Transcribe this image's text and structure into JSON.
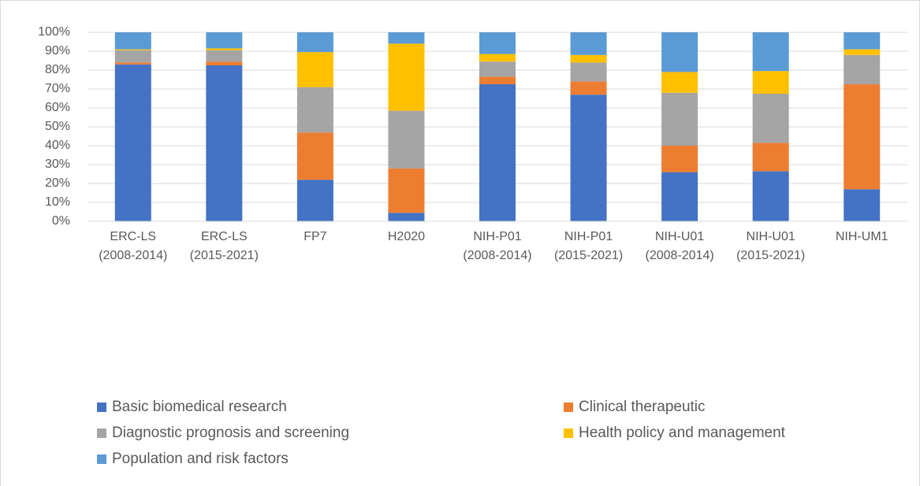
{
  "chart_data": {
    "type": "stacked_bar",
    "categories": [
      "ERC-LS (2008-2014)",
      "ERC-LS (2015-2021)",
      "FP7",
      "H2020",
      "NIH-P01 (2008-2014)",
      "NIH-P01 (2015-2021)",
      "NIH-U01 (2008-2014)",
      "NIH-U01 (2015-2021)",
      "NIH-UM1"
    ],
    "series": [
      {
        "name": "Basic biomedical research",
        "color": "#4472c4",
        "values": [
          83,
          82.5,
          22,
          4.5,
          72.5,
          67,
          26,
          26.5,
          17
        ]
      },
      {
        "name": "Clinical therapeutic",
        "color": "#ed7d31",
        "values": [
          1,
          2,
          25,
          23.5,
          4,
          7,
          14,
          15,
          55.5
        ]
      },
      {
        "name": "Diagnostic prognosis and screening",
        "color": "#a5a5a5",
        "values": [
          6.5,
          6,
          24,
          30.5,
          8,
          10,
          28,
          26,
          15.5
        ]
      },
      {
        "name": "Health policy and management",
        "color": "#ffc000",
        "values": [
          0.5,
          1,
          18.5,
          35.5,
          4,
          4,
          11,
          12,
          3
        ]
      },
      {
        "name": "Population and risk factors",
        "color": "#5b9bd5",
        "values": [
          9,
          8.5,
          10.5,
          6,
          11.5,
          12,
          21,
          20.5,
          9
        ]
      }
    ],
    "ylim": [
      0,
      100
    ],
    "yticks": [
      {
        "value": 0,
        "label": "0%"
      },
      {
        "value": 10,
        "label": "10%"
      },
      {
        "value": 20,
        "label": "20%"
      },
      {
        "value": 30,
        "label": "30%"
      },
      {
        "value": 40,
        "label": "40%"
      },
      {
        "value": 50,
        "label": "50%"
      },
      {
        "value": 60,
        "label": "60%"
      },
      {
        "value": 70,
        "label": "70%"
      },
      {
        "value": 80,
        "label": "80%"
      },
      {
        "value": 90,
        "label": "90%"
      },
      {
        "value": 100,
        "label": "100%"
      }
    ],
    "grid": true,
    "legend": "bottom"
  }
}
